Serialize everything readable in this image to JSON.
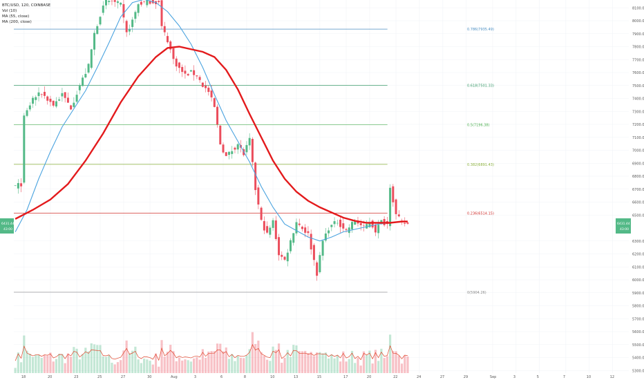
{
  "header": {
    "symbol": "BTC/USD, 120, COINBASE",
    "vol": "Vol (10)",
    "ma55": "MA (55, close)",
    "ma200": "MA (200, close)"
  },
  "price_badges": {
    "left_price": "6431.44",
    "left_time": "43:00",
    "right_price": "6431.44",
    "right_time": "43:00"
  },
  "colors": {
    "up": "#53b987",
    "down": "#eb4d5c",
    "ma55": "#4aa3df",
    "ma200": "#e31a1c",
    "volume_ma": "#e0452b",
    "badge": "#53b987"
  },
  "chart_data": {
    "type": "candlestick",
    "symbol": "BTC/USD",
    "exchange": "COINBASE",
    "interval": "120",
    "ylim": [
      5280,
      8160
    ],
    "y_ticks": [
      {
        "v": 8100,
        "label": "8100.00"
      },
      {
        "v": 8000,
        "label": "8000.00"
      },
      {
        "v": 7900,
        "label": "7900.00"
      },
      {
        "v": 7800,
        "label": "7800.00"
      },
      {
        "v": 7700,
        "label": "7700.00"
      },
      {
        "v": 7600,
        "label": "7600.00"
      },
      {
        "v": 7500,
        "label": "7500.00"
      },
      {
        "v": 7400,
        "label": "7400.00"
      },
      {
        "v": 7300,
        "label": "7300.00"
      },
      {
        "v": 7200,
        "label": "7200.00"
      },
      {
        "v": 7100,
        "label": "7100.00"
      },
      {
        "v": 7000,
        "label": "7000.00"
      },
      {
        "v": 6900,
        "label": "6900.00"
      },
      {
        "v": 6800,
        "label": "6800.00"
      },
      {
        "v": 6700,
        "label": "6700.00"
      },
      {
        "v": 6600,
        "label": "6600.00"
      },
      {
        "v": 6500,
        "label": "6500.00"
      },
      {
        "v": 6300,
        "label": "6300.00"
      },
      {
        "v": 6200,
        "label": "6200.00"
      },
      {
        "v": 6100,
        "label": "6100.00"
      },
      {
        "v": 6000,
        "label": "6000.00"
      },
      {
        "v": 5900,
        "label": "5900.00"
      },
      {
        "v": 5800,
        "label": "5800.00"
      },
      {
        "v": 5700,
        "label": "5700.00"
      },
      {
        "v": 5600,
        "label": "5600.00"
      },
      {
        "v": 5500,
        "label": "5500.00"
      },
      {
        "v": 5400,
        "label": "5400.00"
      },
      {
        "v": 5300,
        "label": "5300.00"
      }
    ],
    "x_ticks": [
      {
        "i": 3,
        "label": "18"
      },
      {
        "i": 12,
        "label": "20"
      },
      {
        "i": 21,
        "label": "23"
      },
      {
        "i": 29,
        "label": "25"
      },
      {
        "i": 37,
        "label": "27"
      },
      {
        "i": 46,
        "label": "30"
      },
      {
        "i": 54,
        "label": "Aug"
      },
      {
        "i": 62,
        "label": "3"
      },
      {
        "i": 71,
        "label": "6"
      },
      {
        "i": 79,
        "label": "8"
      },
      {
        "i": 88,
        "label": "10"
      },
      {
        "i": 96,
        "label": "13"
      },
      {
        "i": 104,
        "label": "15"
      },
      {
        "i": 113,
        "label": "17"
      },
      {
        "i": 121,
        "label": "20"
      },
      {
        "i": 130,
        "label": "22"
      },
      {
        "i": 138,
        "label": "24"
      },
      {
        "i": 146,
        "label": "27"
      },
      {
        "i": 154,
        "label": "29"
      },
      {
        "i": 163,
        "label": "Sep"
      },
      {
        "i": 171,
        "label": "3"
      },
      {
        "i": 179,
        "label": "5"
      },
      {
        "i": 188,
        "label": "7"
      },
      {
        "i": 196,
        "label": "10"
      },
      {
        "i": 204,
        "label": "12"
      }
    ],
    "candle_count": 135,
    "x_slots": 210,
    "close_path": [
      [
        0,
        6720
      ],
      [
        2,
        6740
      ],
      [
        3,
        7250
      ],
      [
        6,
        7400
      ],
      [
        9,
        7440
      ],
      [
        13,
        7350
      ],
      [
        16,
        7430
      ],
      [
        19,
        7330
      ],
      [
        22,
        7500
      ],
      [
        25,
        7650
      ],
      [
        27,
        7900
      ],
      [
        29,
        8050
      ],
      [
        31,
        8150
      ],
      [
        33,
        8150
      ],
      [
        36,
        8120
      ],
      [
        38,
        7900
      ],
      [
        40,
        8000
      ],
      [
        42,
        8130
      ],
      [
        44,
        8140
      ],
      [
        46,
        8150
      ],
      [
        49,
        8140
      ],
      [
        50,
        7950
      ],
      [
        52,
        7850
      ],
      [
        54,
        7700
      ],
      [
        56,
        7630
      ],
      [
        58,
        7580
      ],
      [
        60,
        7600
      ],
      [
        62,
        7580
      ],
      [
        64,
        7500
      ],
      [
        66,
        7450
      ],
      [
        68,
        7330
      ],
      [
        70,
        7050
      ],
      [
        72,
        6950
      ],
      [
        74,
        7000
      ],
      [
        76,
        7050
      ],
      [
        78,
        6970
      ],
      [
        80,
        7080
      ],
      [
        82,
        6700
      ],
      [
        84,
        6450
      ],
      [
        86,
        6350
      ],
      [
        88,
        6450
      ],
      [
        90,
        6200
      ],
      [
        92,
        6150
      ],
      [
        94,
        6300
      ],
      [
        96,
        6450
      ],
      [
        98,
        6400
      ],
      [
        100,
        6350
      ],
      [
        102,
        6150
      ],
      [
        103,
        6050
      ],
      [
        105,
        6300
      ],
      [
        107,
        6400
      ],
      [
        110,
        6450
      ],
      [
        113,
        6380
      ],
      [
        116,
        6460
      ],
      [
        119,
        6400
      ],
      [
        121,
        6450
      ],
      [
        123,
        6380
      ],
      [
        125,
        6450
      ],
      [
        127,
        6430
      ],
      [
        128,
        6730
      ],
      [
        130,
        6500
      ],
      [
        132,
        6440
      ],
      [
        134,
        6431
      ]
    ],
    "ma55": [
      [
        0,
        6370
      ],
      [
        4,
        6540
      ],
      [
        8,
        6780
      ],
      [
        12,
        6990
      ],
      [
        16,
        7180
      ],
      [
        20,
        7320
      ],
      [
        24,
        7460
      ],
      [
        28,
        7640
      ],
      [
        32,
        7830
      ],
      [
        36,
        8030
      ],
      [
        40,
        8140
      ],
      [
        44,
        8165
      ],
      [
        48,
        8140
      ],
      [
        52,
        8070
      ],
      [
        56,
        7960
      ],
      [
        60,
        7820
      ],
      [
        64,
        7640
      ],
      [
        68,
        7430
      ],
      [
        72,
        7230
      ],
      [
        76,
        7070
      ],
      [
        80,
        6910
      ],
      [
        84,
        6720
      ],
      [
        88,
        6560
      ],
      [
        92,
        6430
      ],
      [
        96,
        6380
      ],
      [
        100,
        6330
      ],
      [
        104,
        6300
      ],
      [
        108,
        6330
      ],
      [
        112,
        6370
      ],
      [
        116,
        6390
      ],
      [
        120,
        6410
      ],
      [
        124,
        6430
      ],
      [
        128,
        6440
      ],
      [
        132,
        6450
      ],
      [
        134,
        6450
      ]
    ],
    "ma200": [
      [
        0,
        6470
      ],
      [
        6,
        6540
      ],
      [
        12,
        6620
      ],
      [
        18,
        6740
      ],
      [
        24,
        6920
      ],
      [
        30,
        7130
      ],
      [
        36,
        7370
      ],
      [
        42,
        7570
      ],
      [
        48,
        7720
      ],
      [
        52,
        7790
      ],
      [
        56,
        7800
      ],
      [
        60,
        7780
      ],
      [
        64,
        7760
      ],
      [
        68,
        7720
      ],
      [
        72,
        7620
      ],
      [
        76,
        7470
      ],
      [
        80,
        7280
      ],
      [
        84,
        7100
      ],
      [
        88,
        6920
      ],
      [
        92,
        6780
      ],
      [
        96,
        6680
      ],
      [
        100,
        6610
      ],
      [
        104,
        6560
      ],
      [
        108,
        6520
      ],
      [
        112,
        6480
      ],
      [
        116,
        6455
      ],
      [
        120,
        6440
      ],
      [
        124,
        6440
      ],
      [
        128,
        6440
      ],
      [
        132,
        6450
      ],
      [
        134,
        6450
      ]
    ],
    "fib_levels": [
      {
        "ratio": "0.786",
        "label": "0.786(7935.49)",
        "value": 7935.49,
        "color": "#4a8ec2"
      },
      {
        "ratio": "0.618",
        "label": "0.618(7501.33)",
        "value": 7501.33,
        "color": "#3a9a6a"
      },
      {
        "ratio": "0.5",
        "label": "0.5(7196.38)",
        "value": 7196.38,
        "color": "#4caf50"
      },
      {
        "ratio": "0.382",
        "label": "0.382(6891.43)",
        "value": 6891.43,
        "color": "#8ab03a"
      },
      {
        "ratio": "0.236",
        "label": "0.236(6514.15)",
        "value": 6514.15,
        "color": "#d0322f"
      },
      {
        "ratio": "0",
        "label": "0(5904.26)",
        "value": 5904.26,
        "color": "#888888"
      }
    ],
    "volume_panel_ylim": [
      5280,
      5950
    ]
  }
}
